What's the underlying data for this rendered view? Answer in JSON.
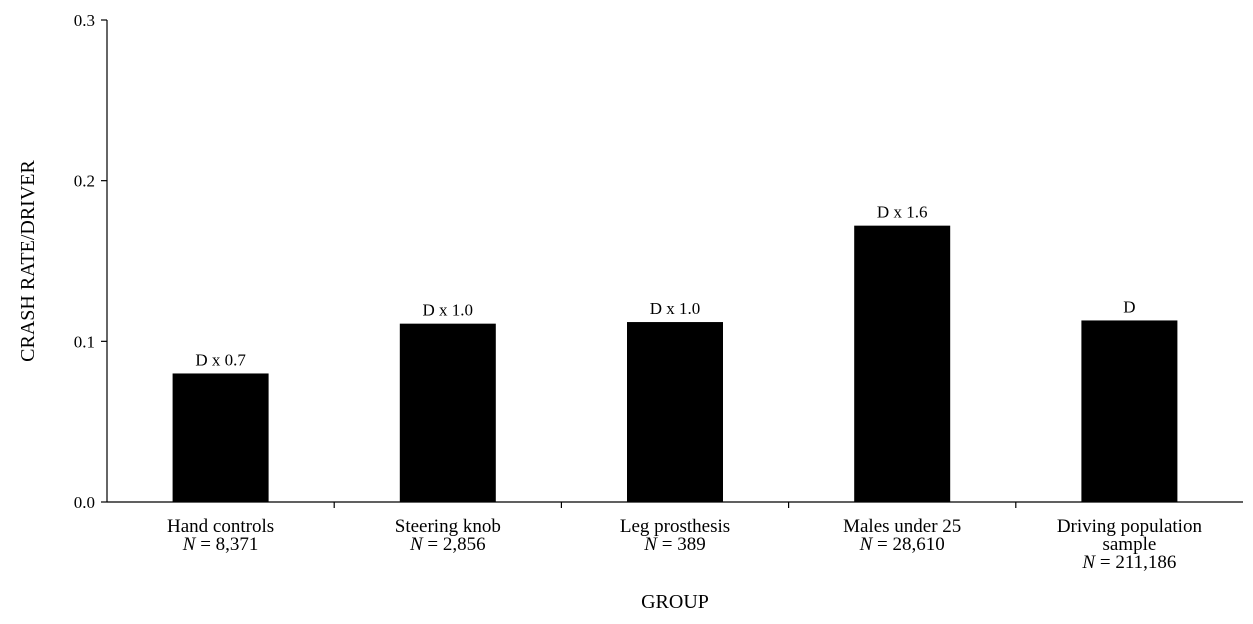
{
  "chart_data": {
    "type": "bar",
    "xlabel": "GROUP",
    "ylabel": "CRASH RATE/DRIVER",
    "ylim": [
      0,
      0.3
    ],
    "yticks": [
      "0.0",
      "0.1",
      "0.2",
      "0.3"
    ],
    "ytick_values": [
      0,
      0.1,
      0.2,
      0.3
    ],
    "grid": false,
    "legend": "none",
    "bar_color": "#000000",
    "categories": [
      {
        "label_lines": [
          "Hand controls"
        ],
        "n_var": "N",
        "n_text": " = 8,371",
        "value": 0.08,
        "bar_label": "D x 0.7"
      },
      {
        "label_lines": [
          "Steering knob"
        ],
        "n_var": "N",
        "n_text": " = 2,856",
        "value": 0.111,
        "bar_label": "D x 1.0"
      },
      {
        "label_lines": [
          "Leg prosthesis"
        ],
        "n_var": "N",
        "n_text": " = 389",
        "value": 0.112,
        "bar_label": "D x 1.0"
      },
      {
        "label_lines": [
          "Males under 25"
        ],
        "n_var": "N",
        "n_text": " = 28,610",
        "value": 0.172,
        "bar_label": "D x 1.6"
      },
      {
        "label_lines": [
          "Driving population",
          "sample"
        ],
        "n_var": "N",
        "n_text": " = 211,186",
        "value": 0.113,
        "bar_label": "D"
      }
    ]
  }
}
